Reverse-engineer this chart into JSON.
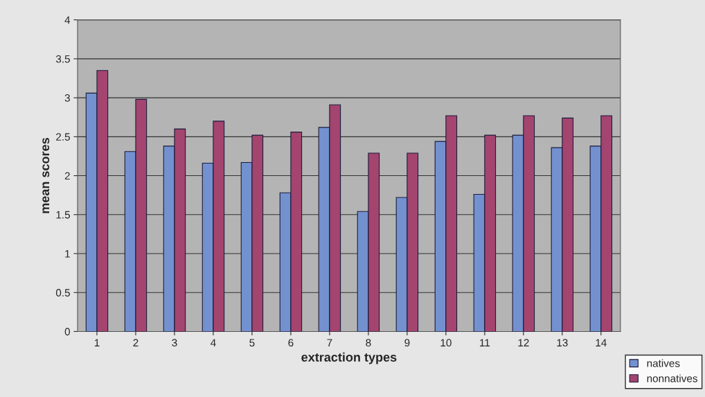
{
  "chart_data": {
    "type": "bar",
    "xlabel": "extraction types",
    "ylabel": "mean scores",
    "categories": [
      "1",
      "2",
      "3",
      "4",
      "5",
      "6",
      "7",
      "8",
      "9",
      "10",
      "11",
      "12",
      "13",
      "14"
    ],
    "series": [
      {
        "name": "natives",
        "color": "#7391cf",
        "values": [
          3.06,
          2.31,
          2.38,
          2.16,
          2.17,
          1.78,
          2.62,
          1.54,
          1.72,
          2.44,
          1.76,
          2.52,
          2.36,
          2.38
        ]
      },
      {
        "name": "nonnatives",
        "color": "#a3456f",
        "values": [
          3.35,
          2.98,
          2.6,
          2.7,
          2.52,
          2.56,
          2.91,
          2.29,
          2.29,
          2.77,
          2.52,
          2.77,
          2.74,
          2.77
        ]
      }
    ],
    "ylim": [
      0,
      4
    ],
    "yticks": [
      0,
      0.5,
      1,
      1.5,
      2,
      2.5,
      3,
      3.5,
      4
    ],
    "grid": "y",
    "legend": "bottom right"
  }
}
